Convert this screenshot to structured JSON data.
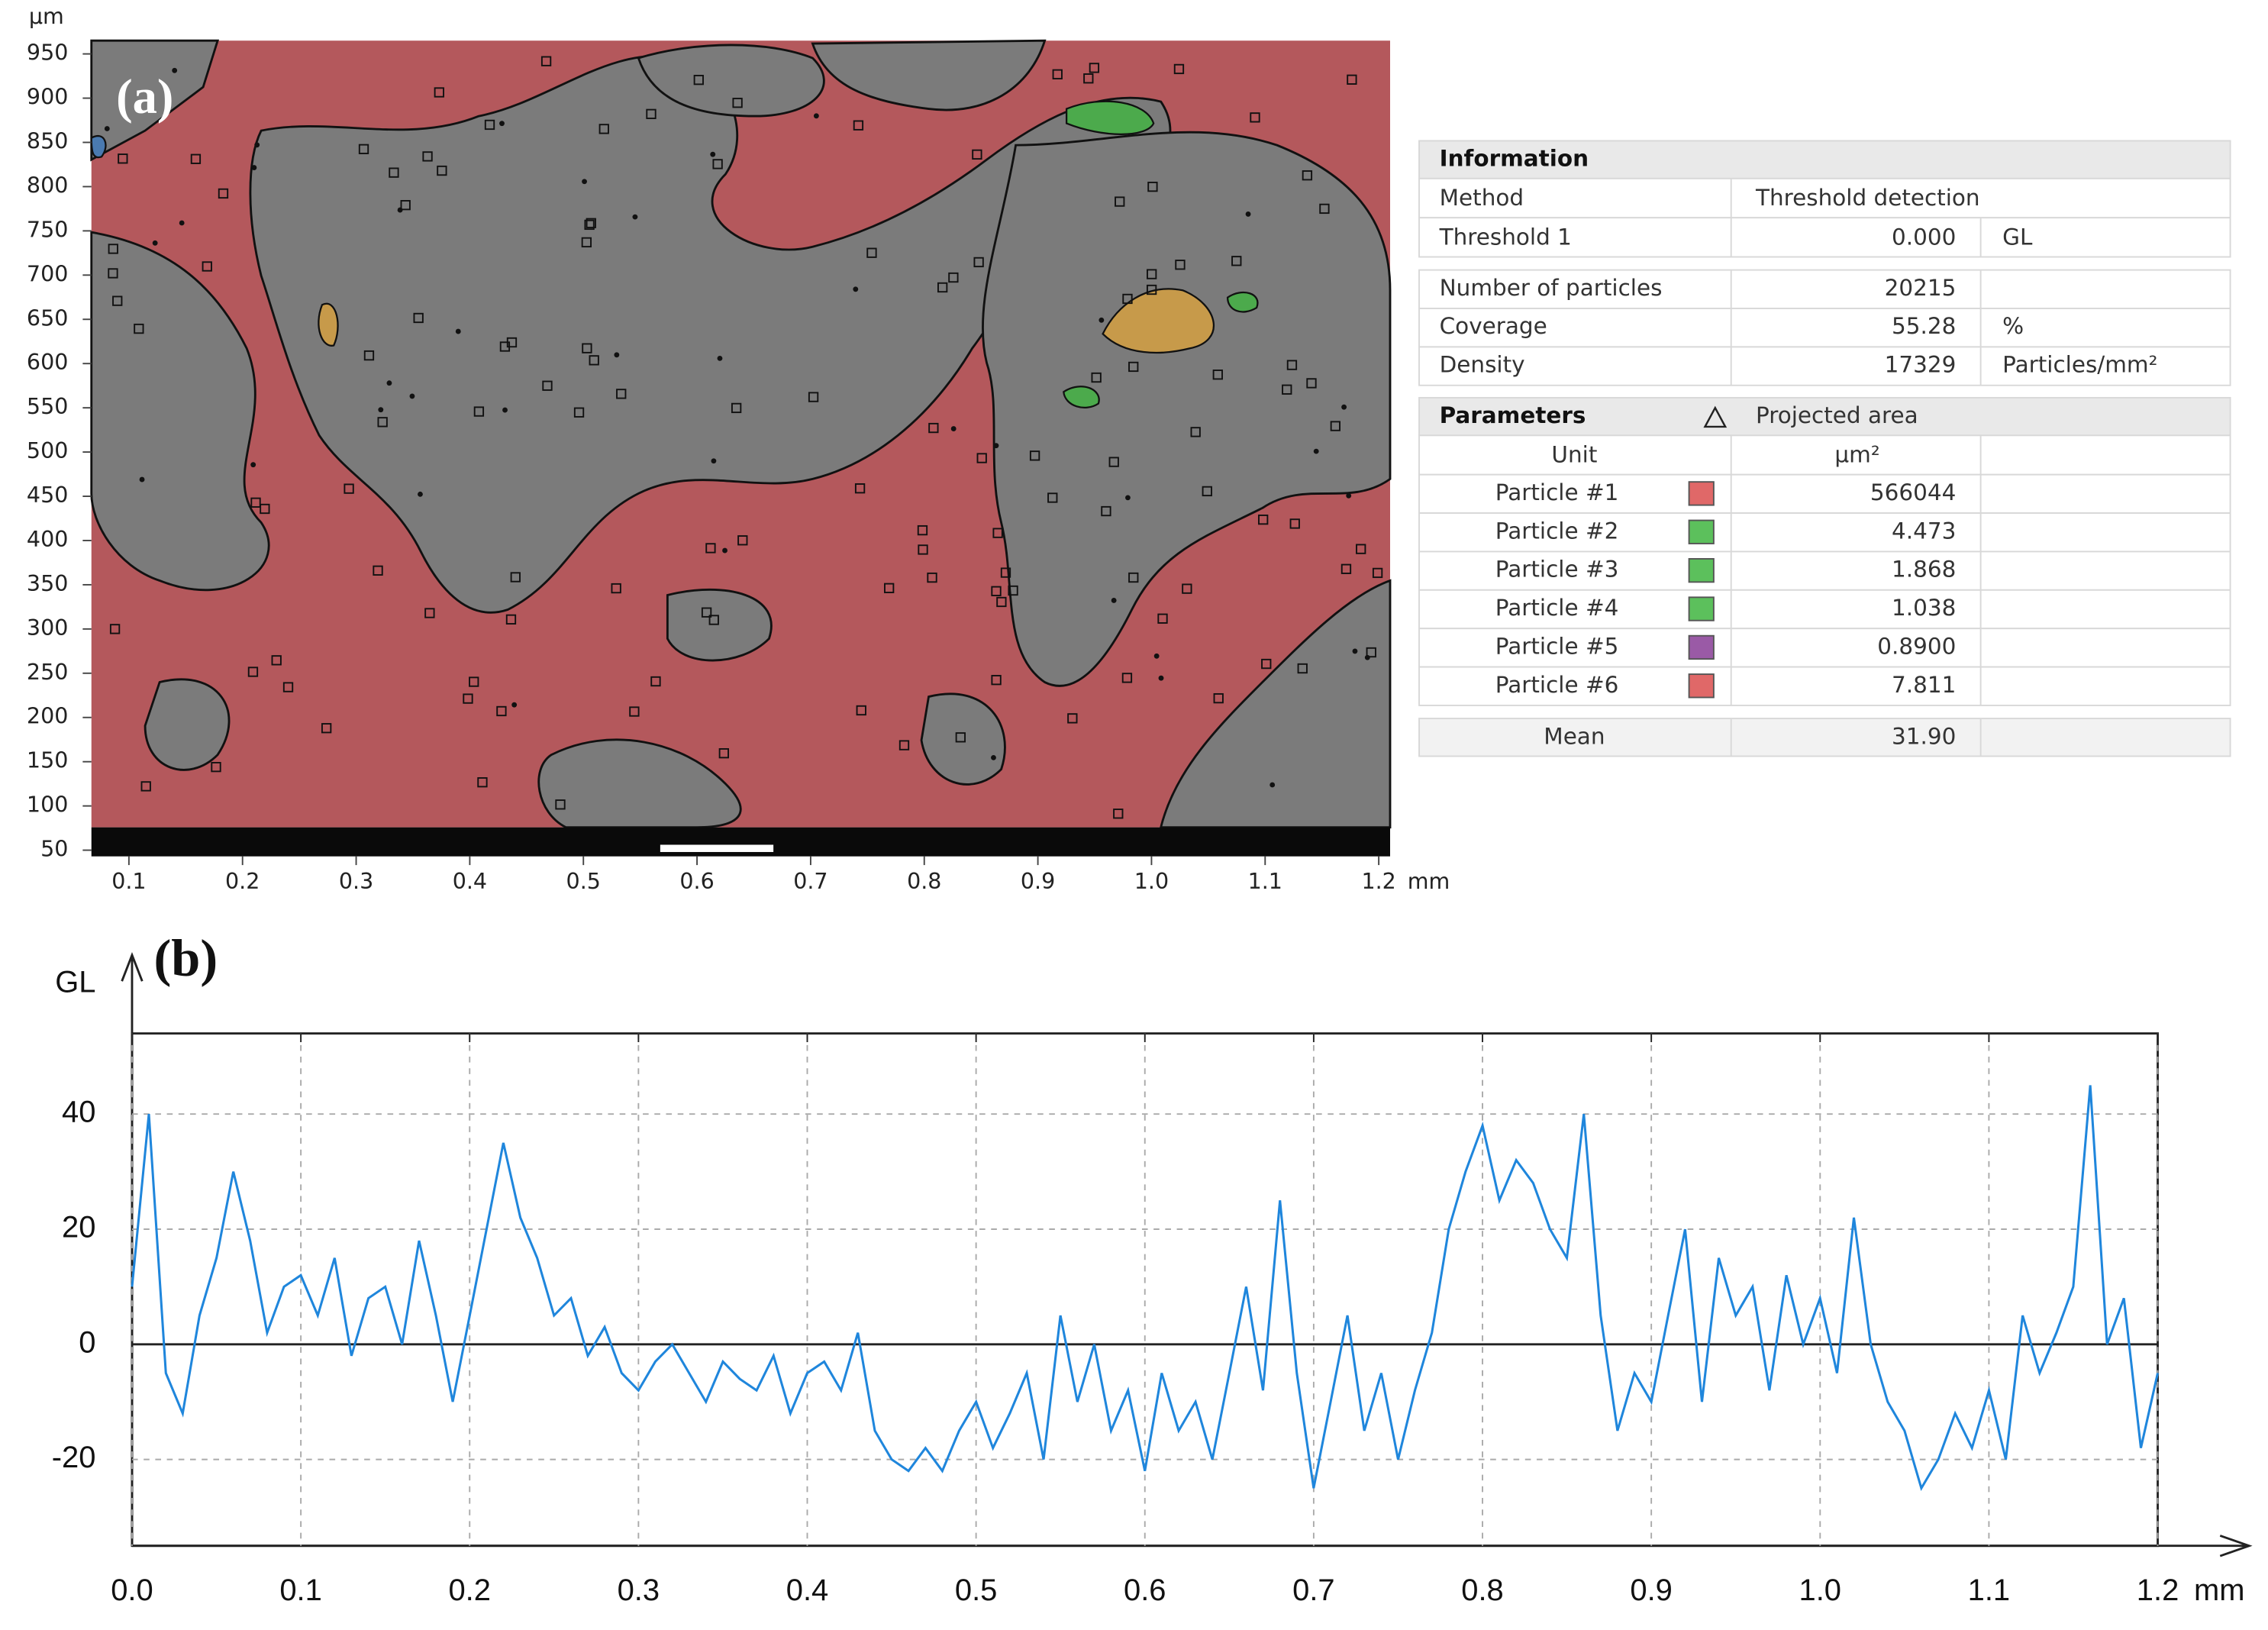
{
  "chart_data": [
    {
      "type": "image",
      "label": "(a)",
      "y_unit": "µm",
      "x_unit": "mm",
      "ylim": [
        43,
        965
      ],
      "xlim": [
        0.067,
        1.21
      ],
      "yticks": [
        950,
        900,
        850,
        800,
        750,
        700,
        650,
        600,
        550,
        500,
        450,
        400,
        350,
        300,
        250,
        200,
        150,
        100,
        50
      ],
      "xticks": [
        0.1,
        0.2,
        0.3,
        0.4,
        0.5,
        0.6,
        0.7,
        0.8,
        0.9,
        {
          "value": 1,
          "label": "1.0"
        },
        1.1,
        1.2
      ]
    },
    {
      "type": "line",
      "label": "(b)",
      "y_label": "GL",
      "x_unit": "mm",
      "xlim": [
        0,
        1.2
      ],
      "ylim": [
        -35,
        54
      ],
      "grid": true,
      "xticks": [
        {
          "value": 0,
          "label": "0.0"
        },
        0.1,
        0.2,
        0.3,
        0.4,
        0.5,
        0.6,
        0.7,
        0.8,
        0.9,
        {
          "value": 1,
          "label": "1.0"
        },
        1.1,
        1.2
      ],
      "yticks": [
        -20,
        0,
        20,
        40
      ],
      "x": [
        0,
        0.01,
        0.02,
        0.03,
        0.04,
        0.05,
        0.06,
        0.07,
        0.08,
        0.09,
        0.1,
        0.11,
        0.12,
        0.13,
        0.14,
        0.15,
        0.16,
        0.17,
        0.18,
        0.19,
        0.2,
        0.21,
        0.22,
        0.23,
        0.24,
        0.25,
        0.26,
        0.27,
        0.28,
        0.29,
        0.3,
        0.31,
        0.32,
        0.33,
        0.34,
        0.35,
        0.36,
        0.37,
        0.38,
        0.39,
        0.4,
        0.41,
        0.42,
        0.43,
        0.44,
        0.45,
        0.46,
        0.47,
        0.48,
        0.49,
        0.5,
        0.51,
        0.52,
        0.53,
        0.54,
        0.55,
        0.56,
        0.57,
        0.58,
        0.59,
        0.6,
        0.61,
        0.62,
        0.63,
        0.64,
        0.65,
        0.66,
        0.67,
        0.68,
        0.69,
        0.7,
        0.71,
        0.72,
        0.73,
        0.74,
        0.75,
        0.76,
        0.77,
        0.78,
        0.79,
        0.8,
        0.81,
        0.82,
        0.83,
        0.84,
        0.85,
        0.86,
        0.87,
        0.88,
        0.89,
        0.9,
        0.91,
        0.92,
        0.93,
        0.94,
        0.95,
        0.96,
        0.97,
        0.98,
        0.99,
        1,
        1.01,
        1.02,
        1.03,
        1.04,
        1.05,
        1.06,
        1.07,
        1.08,
        1.09,
        1.1,
        1.11,
        1.12,
        1.13,
        1.14,
        1.15,
        1.16,
        1.17,
        1.18,
        1.19,
        1.2
      ],
      "series": [
        {
          "color": "#1f86dc",
          "values": [
            10,
            40,
            -5,
            -12,
            5,
            15,
            30,
            18,
            2,
            10,
            12,
            5,
            15,
            -2,
            8,
            10,
            0,
            18,
            5,
            -10,
            5,
            20,
            35,
            22,
            15,
            5,
            8,
            -2,
            3,
            -5,
            -8,
            -3,
            0,
            -5,
            -10,
            -3,
            -6,
            -8,
            -2,
            -12,
            -5,
            -3,
            -8,
            2,
            -15,
            -20,
            -22,
            -18,
            -22,
            -15,
            -10,
            -18,
            -12,
            -5,
            -20,
            5,
            -10,
            0,
            -15,
            -8,
            -22,
            -5,
            -15,
            -10,
            -20,
            -5,
            10,
            -8,
            25,
            -5,
            -25,
            -10,
            5,
            -15,
            -5,
            -20,
            -8,
            2,
            20,
            30,
            38,
            25,
            32,
            28,
            20,
            15,
            40,
            5,
            -15,
            -5,
            -10,
            5,
            20,
            -10,
            15,
            5,
            10,
            -8,
            12,
            0,
            8,
            -5,
            22,
            0,
            -10,
            -15,
            -25,
            -20,
            -12,
            -18,
            -8,
            -20,
            5,
            -5,
            2,
            10,
            45,
            0,
            8,
            -18,
            -5
          ]
        }
      ]
    }
  ],
  "table": {
    "information": {
      "title": "Information",
      "method": [
        "Method",
        "Threshold detection"
      ],
      "threshold": [
        "Threshold 1",
        "0.000",
        "GL"
      ]
    },
    "stats": [
      [
        "Number of particles",
        "20215"
      ],
      [
        "Coverage",
        "55.28",
        "%"
      ],
      [
        "Density",
        "17329",
        "Particles/mm²"
      ]
    ],
    "parameters": {
      "title": "Parameters",
      "column": "Projected area",
      "unit_label": "Unit",
      "unit": "µm²",
      "particles": [
        {
          "name": "Particle #1",
          "color": "#e06868",
          "value": "566044"
        },
        {
          "name": "Particle #2",
          "color": "#5cc05c",
          "value": "4.473"
        },
        {
          "name": "Particle #3",
          "color": "#5cc05c",
          "value": "1.868"
        },
        {
          "name": "Particle #4",
          "color": "#5cc05c",
          "value": "1.038"
        },
        {
          "name": "Particle #5",
          "color": "#9a5aa6",
          "value": "0.8900"
        },
        {
          "name": "Particle #6",
          "color": "#e06868",
          "value": "7.811"
        }
      ]
    },
    "mean": [
      "Mean",
      "31.90"
    ]
  }
}
